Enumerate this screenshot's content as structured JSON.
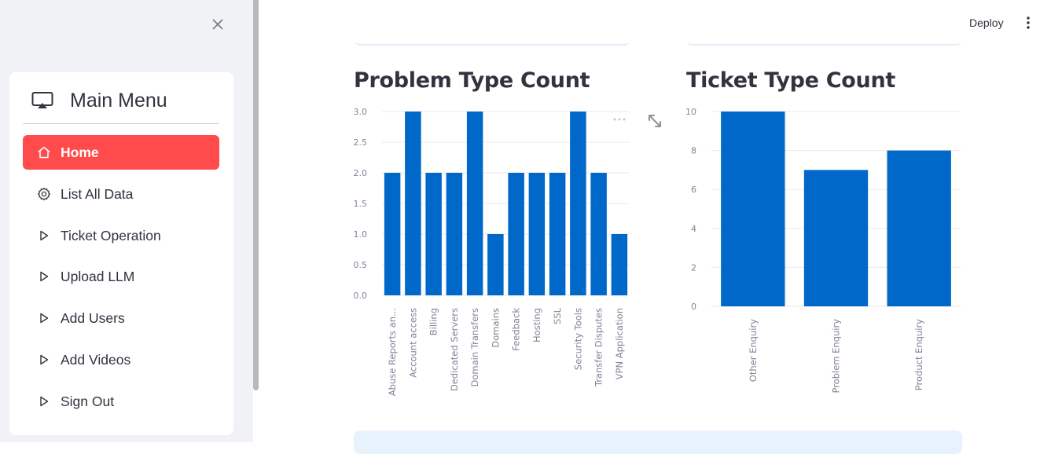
{
  "sidebar": {
    "title": "Main Menu",
    "items": [
      {
        "label": "Home",
        "icon": "house-icon",
        "active": true
      },
      {
        "label": "List All Data",
        "icon": "gear-icon",
        "active": false
      },
      {
        "label": "Ticket Operation",
        "icon": "play-outline-icon",
        "active": false
      },
      {
        "label": "Upload LLM",
        "icon": "play-outline-icon",
        "active": false
      },
      {
        "label": "Add Users",
        "icon": "play-outline-icon",
        "active": false
      },
      {
        "label": "Add Videos",
        "icon": "play-outline-icon",
        "active": false
      },
      {
        "label": "Sign Out",
        "icon": "play-outline-icon",
        "active": false
      }
    ],
    "accent_color": "#ff4b4b"
  },
  "toolbar": {
    "deploy_label": "Deploy"
  },
  "bar_color": "#0068c9",
  "chart_data": [
    {
      "type": "bar",
      "title": "Problem Type Count",
      "xlabel": "",
      "ylabel": "",
      "categories": [
        "Abuse Reports an...",
        "Account access",
        "Billing",
        "Dedicated Servers",
        "Domain Transfers",
        "Domains",
        "Feedback",
        "Hosting",
        "SSL",
        "Security Tools",
        "Transfer Disputes",
        "VPN Application"
      ],
      "values": [
        2,
        3,
        2,
        2,
        3,
        1,
        2,
        2,
        2,
        3,
        2,
        1
      ],
      "ylim": [
        0,
        3
      ],
      "yticks": [
        "0.0",
        "0.5",
        "1.0",
        "1.5",
        "2.0",
        "2.5",
        "3.0"
      ],
      "grid": true
    },
    {
      "type": "bar",
      "title": "Ticket Type Count",
      "xlabel": "",
      "ylabel": "",
      "categories": [
        "Other Enquiry",
        "Problem Enquiry",
        "Product Enquiry"
      ],
      "values": [
        10,
        7,
        8
      ],
      "ylim": [
        0,
        10
      ],
      "yticks": [
        "0",
        "2",
        "4",
        "6",
        "8",
        "10"
      ],
      "grid": true
    }
  ]
}
